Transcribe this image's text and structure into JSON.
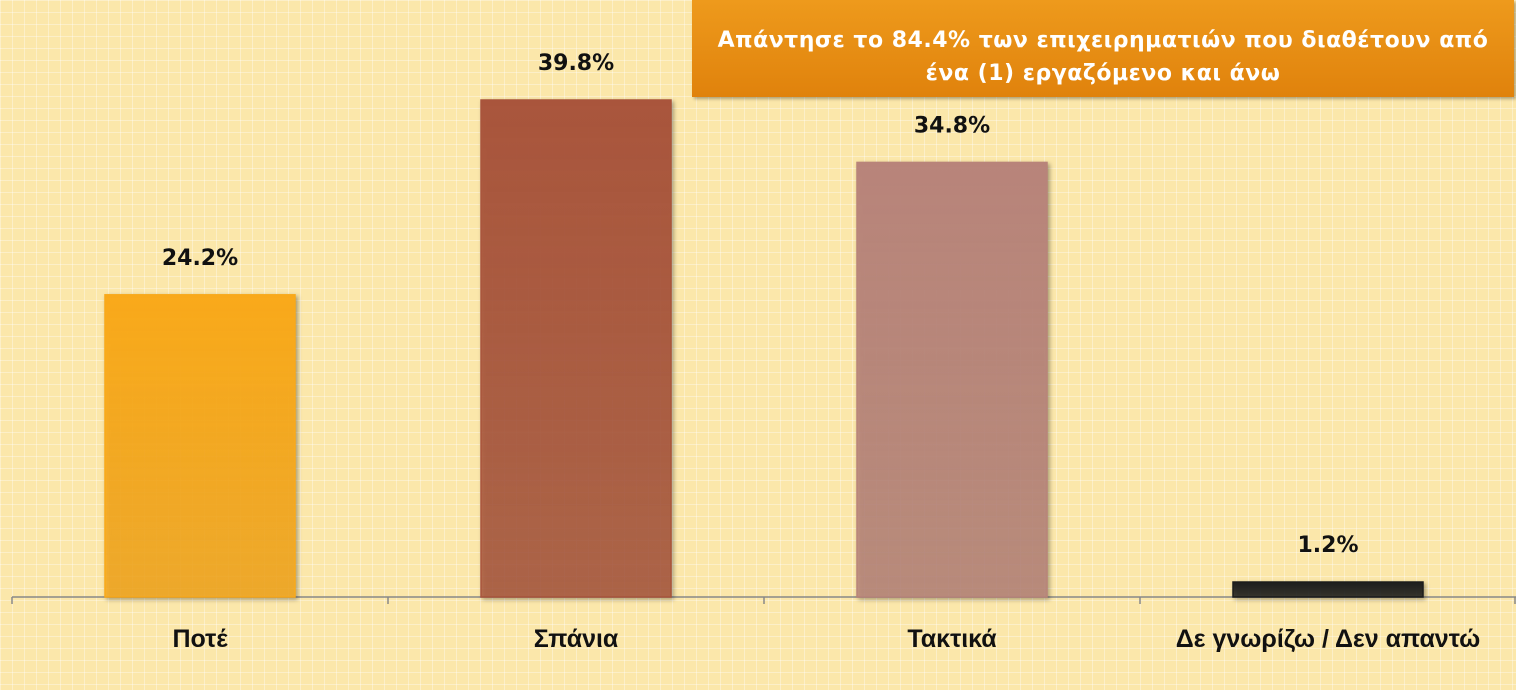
{
  "chart_data": {
    "type": "bar",
    "annotation": "Απάντησε το 84.4% των επιχειρηματιών που διαθέτουν από ένα (1) εργαζόμενο και άνω",
    "categories": [
      "Ποτέ",
      "Σπάνια",
      "Τακτικά",
      "Δε γνωρίζω / Δεν απαντώ"
    ],
    "values": [
      24.2,
      39.8,
      34.8,
      1.2
    ],
    "value_labels": [
      "24.2%",
      "39.8%",
      "34.8%",
      "1.2%"
    ],
    "colors": [
      "#f9a91a",
      "#a9553c",
      "#b8847a",
      "#1c1c1c"
    ]
  }
}
